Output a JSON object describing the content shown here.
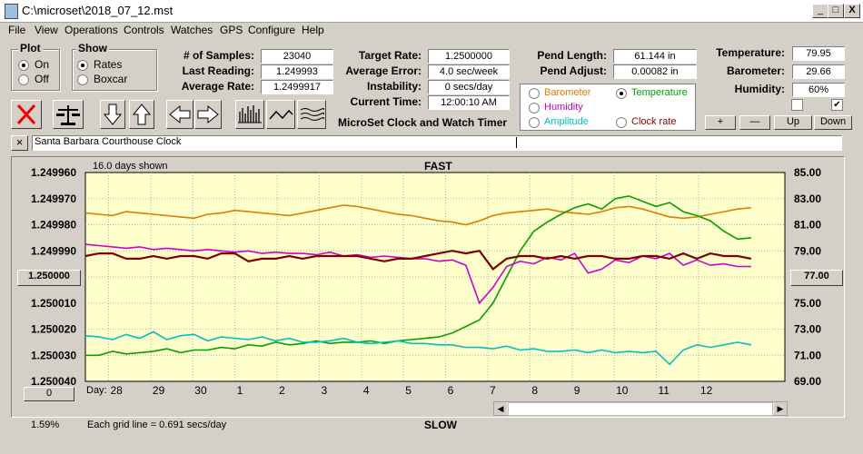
{
  "window": {
    "title": "C:\\microset\\2018_07_12.mst",
    "min": "_",
    "max": "□",
    "close": "X"
  },
  "menu": [
    "File",
    "View",
    "Operations",
    "Controls",
    "Watches",
    "GPS",
    "Configure",
    "Help"
  ],
  "plot_group": {
    "title": "Plot",
    "on": "On",
    "off": "Off",
    "selected": "On"
  },
  "show_group": {
    "title": "Show",
    "rates": "Rates",
    "boxcar": "Boxcar",
    "selected": "Rates"
  },
  "stats": {
    "samples_label": "# of Samples:",
    "samples": "23040",
    "last_label": "Last Reading:",
    "last": "1.249993",
    "avg_label": "Average Rate:",
    "avg": "1.2499917"
  },
  "rates": {
    "target_label": "Target Rate:",
    "target": "1.2500000",
    "error_label": "Average Error:",
    "error": "4.0 sec/week",
    "instab_label": "Instability:",
    "instab": "0 secs/day",
    "time_label": "Current Time:",
    "time": "12:00:10 AM"
  },
  "pend": {
    "length_label": "Pend Length:",
    "length": "61.144 in",
    "adjust_label": "Pend Adjust:",
    "adjust": "0.00082 in"
  },
  "env": {
    "temp_label": "Temperature:",
    "temp": "79.95",
    "baro_label": "Barometer:",
    "baro": "29.66",
    "hum_label": "Humidity:",
    "hum": "60%"
  },
  "series_select": {
    "barometer": "Barometer",
    "temperature": "Temperature",
    "humidity": "Humidity",
    "amplitude": "Amplitude",
    "clockrate": "Clock rate",
    "selected": "Temperature",
    "colors": {
      "barometer": "#e07b00",
      "temperature": "#00a000",
      "humidity": "#cc00cc",
      "amplitude": "#00c0c0",
      "clockrate": "#800000"
    }
  },
  "app_caption": "MicroSet Clock and Watch Timer",
  "adj_buttons": {
    "plus": "+",
    "minus": "—",
    "up": "Up",
    "down": "Down"
  },
  "clock_name": "Santa Barbara Courthouse Clock",
  "close_x": "×",
  "chart_data": {
    "type": "line",
    "top_label": "FAST",
    "bottom_label": "SLOW",
    "days_shown": "16.0 days shown",
    "grid_note": "Each grid line = 0.691 secs/day",
    "percent": "1.59%",
    "left_button": "1.250000",
    "right_button": "77.00",
    "zero_button": "0",
    "day_prefix": "Day:",
    "x_ticks": [
      "28",
      "29",
      "30",
      "1",
      "2",
      "3",
      "4",
      "5",
      "6",
      "7",
      "8",
      "9",
      "10",
      "11",
      "12"
    ],
    "y_left_ticks": [
      "1.249960",
      "1.249970",
      "1.249980",
      "1.249990",
      "",
      "1.250010",
      "1.250020",
      "1.250030",
      "1.250040"
    ],
    "y_right_ticks": [
      "85.00",
      "83.00",
      "81.00",
      "79.00",
      "",
      "75.00",
      "73.00",
      "71.00",
      "69.00"
    ],
    "ylim_left": [
      1.24996,
      1.25004
    ],
    "ylim_right": [
      69,
      85
    ],
    "grid": true,
    "series": [
      {
        "key": "barometer",
        "color": "#e07b00",
        "values": [
          81.9,
          81.8,
          81.7,
          82.0,
          81.9,
          81.8,
          81.7,
          81.6,
          81.5,
          81.8,
          81.9,
          82.1,
          82.0,
          81.9,
          81.8,
          81.7,
          81.9,
          82.1,
          82.3,
          82.5,
          82.4,
          82.2,
          82.0,
          81.8,
          81.7,
          81.5,
          81.3,
          81.2,
          81.0,
          81.3,
          81.7,
          81.9,
          82.0,
          82.1,
          82.2,
          82.0,
          81.9,
          81.8,
          82.0,
          82.3,
          82.4,
          82.2,
          81.9,
          81.6,
          81.5,
          81.6,
          81.8,
          82.0,
          82.2,
          82.3
        ]
      },
      {
        "key": "temperature",
        "color": "#00a000",
        "values": [
          71.0,
          71.0,
          71.3,
          71.1,
          71.2,
          71.3,
          71.5,
          71.2,
          71.4,
          71.4,
          71.6,
          71.5,
          71.8,
          71.7,
          72.0,
          71.8,
          71.9,
          72.1,
          71.9,
          72.0,
          72.0,
          72.1,
          71.9,
          72.1,
          72.2,
          72.3,
          72.4,
          72.7,
          73.2,
          73.7,
          75.0,
          77.0,
          79.0,
          80.5,
          81.2,
          81.8,
          82.3,
          82.6,
          82.2,
          83.0,
          83.2,
          82.8,
          82.4,
          82.7,
          82.0,
          81.7,
          81.3,
          80.5,
          79.9,
          80.0
        ]
      },
      {
        "key": "humidity",
        "color": "#cc00cc",
        "values": [
          79.5,
          79.4,
          79.3,
          79.2,
          79.3,
          79.1,
          79.2,
          79.1,
          79.0,
          79.1,
          79.0,
          78.9,
          79.0,
          78.8,
          78.9,
          78.8,
          78.8,
          78.7,
          78.9,
          78.6,
          78.7,
          78.5,
          78.6,
          78.5,
          78.4,
          78.4,
          78.2,
          78.3,
          77.9,
          75.0,
          76.2,
          77.8,
          78.2,
          78.0,
          78.5,
          78.3,
          78.8,
          77.3,
          77.6,
          78.3,
          78.1,
          78.6,
          78.4,
          78.8,
          77.9,
          78.3,
          77.9,
          78.0,
          77.8,
          77.8
        ]
      },
      {
        "key": "amplitude",
        "color": "#00c0c0",
        "values": [
          72.5,
          72.4,
          72.2,
          72.6,
          72.3,
          72.8,
          72.2,
          72.5,
          72.6,
          72.1,
          72.4,
          72.3,
          72.2,
          72.4,
          72.1,
          72.3,
          72.0,
          72.0,
          72.1,
          72.3,
          72.0,
          71.9,
          72.0,
          72.1,
          71.9,
          71.9,
          71.8,
          71.8,
          71.6,
          71.6,
          71.5,
          71.7,
          71.4,
          71.5,
          71.3,
          71.3,
          71.4,
          71.2,
          71.4,
          71.2,
          71.3,
          71.2,
          71.3,
          70.3,
          71.4,
          71.8,
          71.6,
          71.8,
          72.0,
          71.8
        ]
      },
      {
        "key": "clockrate",
        "color": "#800000",
        "values": [
          1.249992,
          1.249991,
          1.249991,
          1.249993,
          1.249993,
          1.249992,
          1.249993,
          1.249992,
          1.249992,
          1.249993,
          1.249991,
          1.249991,
          1.249994,
          1.249993,
          1.249993,
          1.249992,
          1.249993,
          1.249992,
          1.249992,
          1.249992,
          1.249992,
          1.249993,
          1.249994,
          1.249993,
          1.249993,
          1.249992,
          1.249991,
          1.24999,
          1.249991,
          1.24999,
          1.249997,
          1.249993,
          1.249992,
          1.249992,
          1.249993,
          1.249992,
          1.249993,
          1.249992,
          1.249992,
          1.249993,
          1.249993,
          1.249992,
          1.249992,
          1.249993,
          1.249991,
          1.249993,
          1.249991,
          1.249992,
          1.249992,
          1.249993
        ]
      }
    ]
  }
}
